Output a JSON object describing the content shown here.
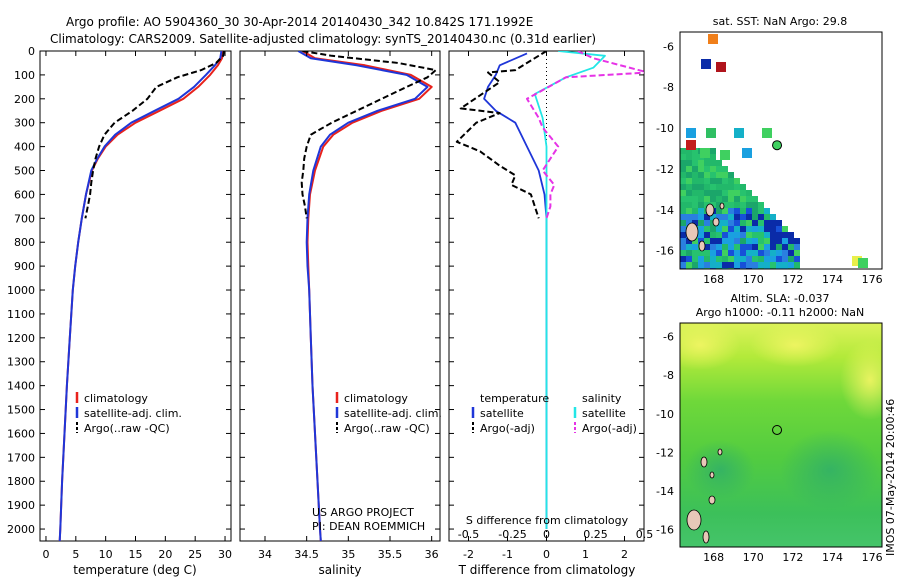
{
  "header": {
    "line1": "Argo profile: AO 5904360_30 30-Apr-2014 20140430_342 10.842S 171.1992E",
    "line2": "Climatology: CARS2009. Satellite-adjusted climatology: synTS_20140430.nc (0.31d earlier)"
  },
  "credits": {
    "project": "US ARGO PROJECT",
    "pi": "PI: DEAN ROEMMICH",
    "stamp": "IMOS 07-May-2014 20:00:46"
  },
  "colors": {
    "climatology": "#e8221c",
    "satellite": "#1f36d8",
    "argo": "#000000",
    "satellite_salinity": "#22e6e6",
    "argo_salinity": "#e633e6"
  },
  "chart_data": [
    {
      "type": "line",
      "name": "temperature-profile",
      "xlabel": "temperature (deg C)",
      "ylabel": "",
      "xlim": [
        -1,
        31
      ],
      "ylim": [
        2050,
        0
      ],
      "xticks": [
        0,
        5,
        10,
        15,
        20,
        25,
        30
      ],
      "yticks": [
        0,
        100,
        200,
        300,
        400,
        500,
        600,
        700,
        800,
        900,
        1000,
        1100,
        1200,
        1300,
        1400,
        1500,
        1600,
        1700,
        1800,
        1900,
        2000
      ],
      "legend": [
        "climatology",
        "satellite-adj. clim.",
        "Argo(..raw -QC)"
      ],
      "series": [
        {
          "name": "climatology",
          "points": [
            [
              29.6,
              0
            ],
            [
              29.5,
              30
            ],
            [
              28.8,
              60
            ],
            [
              27.5,
              100
            ],
            [
              25.5,
              150
            ],
            [
              23,
              200
            ],
            [
              19,
              250
            ],
            [
              15,
              300
            ],
            [
              12,
              350
            ],
            [
              10,
              400
            ],
            [
              8.7,
              450
            ],
            [
              7.7,
              500
            ],
            [
              6.7,
              600
            ],
            [
              6,
              700
            ],
            [
              5.4,
              800
            ],
            [
              4.9,
              900
            ],
            [
              4.5,
              1000
            ],
            [
              4,
              1200
            ],
            [
              3.5,
              1400
            ],
            [
              3.1,
              1600
            ],
            [
              2.7,
              1800
            ],
            [
              2.4,
              2000
            ],
            [
              2.3,
              2050
            ]
          ]
        },
        {
          "name": "satellite-adj. clim.",
          "points": [
            [
              29.4,
              0
            ],
            [
              29.2,
              30
            ],
            [
              28.3,
              60
            ],
            [
              26.8,
              100
            ],
            [
              24.8,
              150
            ],
            [
              22.2,
              200
            ],
            [
              18.2,
              250
            ],
            [
              14.3,
              300
            ],
            [
              11.6,
              350
            ],
            [
              9.8,
              400
            ],
            [
              8.6,
              450
            ],
            [
              7.6,
              500
            ],
            [
              6.7,
              600
            ],
            [
              6,
              700
            ],
            [
              5.4,
              800
            ],
            [
              4.9,
              900
            ],
            [
              4.5,
              1000
            ],
            [
              4,
              1200
            ],
            [
              3.5,
              1400
            ],
            [
              3.1,
              1600
            ],
            [
              2.7,
              1800
            ],
            [
              2.4,
              2000
            ],
            [
              2.3,
              2050
            ]
          ]
        },
        {
          "name": "Argo(..raw -QC)",
          "points": [
            [
              29.8,
              0
            ],
            [
              29.7,
              20
            ],
            [
              28.5,
              50
            ],
            [
              26,
              80
            ],
            [
              22,
              110
            ],
            [
              18.5,
              150
            ],
            [
              17,
              200
            ],
            [
              14.5,
              250
            ],
            [
              11.5,
              300
            ],
            [
              9.8,
              350
            ],
            [
              8.9,
              400
            ],
            [
              8.3,
              450
            ],
            [
              7.9,
              500
            ],
            [
              7.6,
              550
            ],
            [
              7.4,
              600
            ],
            [
              7,
              650
            ],
            [
              6.6,
              700
            ]
          ]
        }
      ]
    },
    {
      "type": "line",
      "name": "salinity-profile",
      "xlabel": "salinity",
      "xlim": [
        33.7,
        36.1
      ],
      "ylim": [
        2050,
        0
      ],
      "xticks": [
        34,
        34.5,
        35,
        35.5,
        36
      ],
      "legend": [
        "climatology",
        "satellite-adj. clim.",
        "Argo(..raw -QC)"
      ],
      "series": [
        {
          "name": "climatology",
          "points": [
            [
              34.45,
              0
            ],
            [
              34.6,
              30
            ],
            [
              35.2,
              60
            ],
            [
              35.75,
              100
            ],
            [
              36,
              150
            ],
            [
              35.85,
              200
            ],
            [
              35.4,
              250
            ],
            [
              35.05,
              300
            ],
            [
              34.82,
              350
            ],
            [
              34.7,
              400
            ],
            [
              34.6,
              500
            ],
            [
              34.54,
              600
            ],
            [
              34.52,
              700
            ],
            [
              34.51,
              800
            ],
            [
              34.52,
              900
            ],
            [
              34.53,
              1000
            ],
            [
              34.55,
              1200
            ],
            [
              34.57,
              1400
            ],
            [
              34.6,
              1600
            ],
            [
              34.63,
              1800
            ],
            [
              34.66,
              2000
            ],
            [
              34.67,
              2050
            ]
          ]
        },
        {
          "name": "satellite-adj. clim.",
          "points": [
            [
              34.4,
              0
            ],
            [
              34.55,
              30
            ],
            [
              35.1,
              60
            ],
            [
              35.7,
              100
            ],
            [
              35.95,
              150
            ],
            [
              35.8,
              200
            ],
            [
              35.35,
              250
            ],
            [
              35,
              300
            ],
            [
              34.78,
              350
            ],
            [
              34.67,
              400
            ],
            [
              34.58,
              500
            ],
            [
              34.53,
              600
            ],
            [
              34.51,
              700
            ],
            [
              34.5,
              800
            ],
            [
              34.51,
              900
            ],
            [
              34.53,
              1000
            ],
            [
              34.55,
              1200
            ],
            [
              34.57,
              1400
            ],
            [
              34.6,
              1600
            ],
            [
              34.63,
              1800
            ],
            [
              34.66,
              2000
            ],
            [
              34.67,
              2050
            ]
          ]
        },
        {
          "name": "Argo(..raw -QC)",
          "points": [
            [
              34.45,
              0
            ],
            [
              34.8,
              20
            ],
            [
              35.6,
              50
            ],
            [
              36.05,
              80
            ],
            [
              35.95,
              110
            ],
            [
              35.7,
              150
            ],
            [
              35.4,
              200
            ],
            [
              35.1,
              250
            ],
            [
              34.8,
              300
            ],
            [
              34.55,
              350
            ],
            [
              34.5,
              400
            ],
            [
              34.47,
              450
            ],
            [
              34.46,
              500
            ],
            [
              34.44,
              550
            ],
            [
              34.45,
              600
            ],
            [
              34.48,
              650
            ],
            [
              34.5,
              700
            ]
          ]
        }
      ]
    },
    {
      "type": "line",
      "name": "difference-profile",
      "xlabel": "T difference from climatology",
      "xlabel_top": "S difference from climatology",
      "xlim": [
        -2.5,
        2.5
      ],
      "ylim": [
        2050,
        0
      ],
      "xticks": [
        -2,
        -1,
        0,
        1,
        2
      ],
      "xticks_top_labels": [
        "-0.5",
        "-0.25",
        "0",
        "0.25",
        "0.5"
      ],
      "legend_titles": [
        "temperature",
        "salinity"
      ],
      "legend": [
        "satellite",
        "Argo(-adj)",
        "satellite",
        "Argo(-adj)"
      ],
      "series": [
        {
          "name": "temperature satellite",
          "points": [
            [
              -0.5,
              10
            ],
            [
              -1.2,
              60
            ],
            [
              -1.3,
              100
            ],
            [
              -1.5,
              150
            ],
            [
              -1.6,
              200
            ],
            [
              -1.3,
              250
            ],
            [
              -0.8,
              300
            ],
            [
              -0.5,
              400
            ],
            [
              -0.2,
              500
            ],
            [
              -0.05,
              600
            ],
            [
              0,
              700
            ],
            [
              0,
              1000
            ],
            [
              0,
              2000
            ]
          ]
        },
        {
          "name": "temperature Argo(-adj)",
          "points": [
            [
              0,
              0
            ],
            [
              -0.8,
              80
            ],
            [
              -1.5,
              90
            ],
            [
              -1.2,
              130
            ],
            [
              -2.2,
              240
            ],
            [
              -1.2,
              260
            ],
            [
              -1.8,
              300
            ],
            [
              -2.3,
              380
            ],
            [
              -1.7,
              420
            ],
            [
              -1.2,
              480
            ],
            [
              -0.8,
              520
            ],
            [
              -0.9,
              560
            ],
            [
              -0.4,
              600
            ],
            [
              -0.3,
              650
            ],
            [
              -0.2,
              700
            ]
          ]
        },
        {
          "name": "salinity satellite",
          "points": [
            [
              0.3,
              0
            ],
            [
              1.5,
              20
            ],
            [
              1.2,
              70
            ],
            [
              0.5,
              110
            ],
            [
              -0.3,
              180
            ],
            [
              -0.1,
              280
            ],
            [
              0,
              400
            ],
            [
              0,
              600
            ],
            [
              0,
              800
            ],
            [
              0,
              1000
            ],
            [
              0,
              2000
            ]
          ]
        },
        {
          "name": "salinity Argo(-adj)",
          "points": [
            [
              0.8,
              0
            ],
            [
              1.2,
              30
            ],
            [
              2.6,
              90
            ],
            [
              0.5,
              110
            ],
            [
              -0.5,
              200
            ],
            [
              -0.2,
              280
            ],
            [
              -0.1,
              320
            ],
            [
              0.3,
              400
            ],
            [
              0.1,
              450
            ],
            [
              -0.1,
              500
            ],
            [
              0.2,
              560
            ],
            [
              0.1,
              600
            ],
            [
              0.1,
              650
            ],
            [
              0,
              700
            ]
          ]
        }
      ]
    },
    {
      "type": "heatmap",
      "name": "sst-map",
      "title": "sat. SST: NaN Argo: 29.8",
      "xticks": [
        168,
        170,
        172,
        174,
        176
      ],
      "yticks": [
        -6,
        -8,
        -10,
        -12,
        -14,
        -16
      ],
      "xlim": [
        166.3,
        176.5
      ],
      "ylim": [
        -16.9,
        -5.3
      ],
      "argo_position": [
        171.2,
        -10.84
      ]
    },
    {
      "type": "heatmap",
      "name": "sla-map",
      "title_line1": "Altim. SLA: -0.037",
      "title_line2": "Argo h1000: -0.11 h2000: NaN",
      "xticks": [
        168,
        170,
        172,
        174,
        176
      ],
      "yticks": [
        -6,
        -8,
        -10,
        -12,
        -14,
        -16
      ],
      "xlim": [
        166.3,
        176.5
      ],
      "ylim": [
        -16.9,
        -5.3
      ],
      "argo_position": [
        171.2,
        -10.84
      ]
    }
  ]
}
